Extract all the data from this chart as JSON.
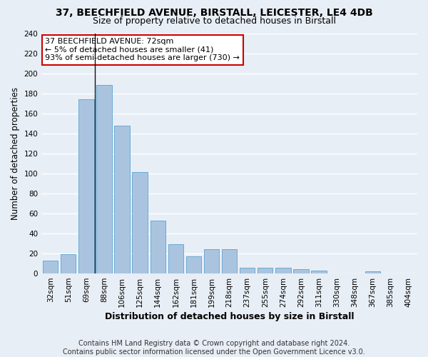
{
  "title1": "37, BEECHFIELD AVENUE, BIRSTALL, LEICESTER, LE4 4DB",
  "title2": "Size of property relative to detached houses in Birstall",
  "xlabel": "Distribution of detached houses by size in Birstall",
  "ylabel": "Number of detached properties",
  "bar_color": "#aac4e0",
  "bar_edge_color": "#6aaad4",
  "categories": [
    "32sqm",
    "51sqm",
    "69sqm",
    "88sqm",
    "106sqm",
    "125sqm",
    "144sqm",
    "162sqm",
    "181sqm",
    "199sqm",
    "218sqm",
    "237sqm",
    "255sqm",
    "274sqm",
    "292sqm",
    "311sqm",
    "330sqm",
    "348sqm",
    "367sqm",
    "385sqm",
    "404sqm"
  ],
  "values": [
    13,
    19,
    174,
    188,
    148,
    101,
    53,
    29,
    17,
    24,
    24,
    6,
    6,
    6,
    4,
    3,
    0,
    0,
    2,
    0,
    0
  ],
  "ylim": [
    0,
    240
  ],
  "yticks": [
    0,
    20,
    40,
    60,
    80,
    100,
    120,
    140,
    160,
    180,
    200,
    220,
    240
  ],
  "property_line_x": 2.5,
  "annotation_text": "37 BEECHFIELD AVENUE: 72sqm\n← 5% of detached houses are smaller (41)\n93% of semi-detached houses are larger (730) →",
  "annotation_box_color": "#ffffff",
  "annotation_box_edge": "#cc0000",
  "footer1": "Contains HM Land Registry data © Crown copyright and database right 2024.",
  "footer2": "Contains public sector information licensed under the Open Government Licence v3.0.",
  "bg_color": "#e8eef5",
  "plot_bg_color": "#e8eef5",
  "grid_color": "#ffffff",
  "title1_fontsize": 10,
  "title2_fontsize": 9,
  "xlabel_fontsize": 9,
  "ylabel_fontsize": 8.5,
  "tick_fontsize": 7.5,
  "footer_fontsize": 7
}
